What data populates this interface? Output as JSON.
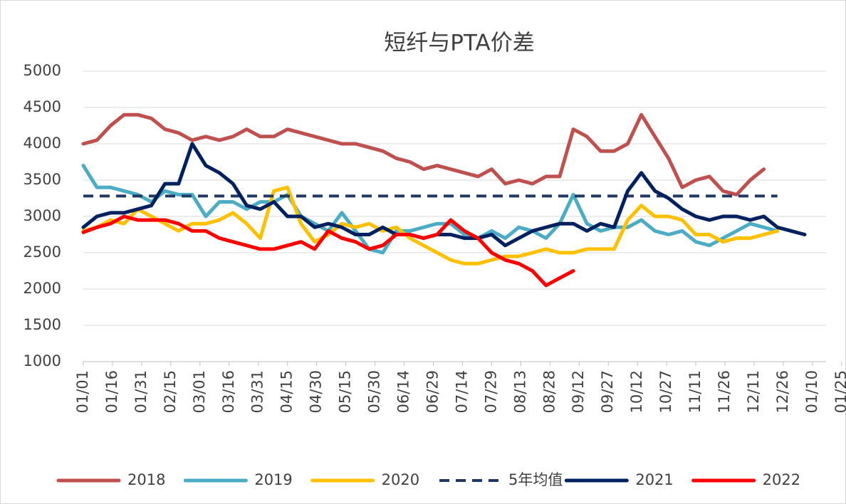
{
  "chart_data": {
    "type": "line",
    "title": "短纤与PTA价差",
    "x": [
      0,
      7,
      14,
      21,
      28,
      35,
      42,
      49,
      56,
      63,
      70,
      77,
      84,
      91,
      98,
      105,
      112,
      119,
      126,
      133,
      140,
      147,
      154,
      161,
      168,
      175,
      182,
      189,
      196,
      203,
      210,
      217,
      224,
      231,
      238,
      245,
      252,
      259,
      266,
      273,
      280,
      287,
      294,
      301,
      308,
      315,
      322,
      329,
      336,
      343,
      350,
      357,
      364,
      371
    ],
    "xlim": [
      0,
      382
    ],
    "xticks": [
      {
        "value": 0,
        "label": "01/01"
      },
      {
        "value": 15,
        "label": "01/16"
      },
      {
        "value": 30,
        "label": "01/31"
      },
      {
        "value": 45,
        "label": "02/15"
      },
      {
        "value": 60,
        "label": "03/01"
      },
      {
        "value": 75,
        "label": "03/16"
      },
      {
        "value": 90,
        "label": "03/31"
      },
      {
        "value": 105,
        "label": "04/15"
      },
      {
        "value": 120,
        "label": "04/30"
      },
      {
        "value": 135,
        "label": "05/15"
      },
      {
        "value": 150,
        "label": "05/30"
      },
      {
        "value": 165,
        "label": "06/14"
      },
      {
        "value": 180,
        "label": "06/29"
      },
      {
        "value": 195,
        "label": "07/14"
      },
      {
        "value": 210,
        "label": "07/29"
      },
      {
        "value": 225,
        "label": "08/13"
      },
      {
        "value": 240,
        "label": "08/28"
      },
      {
        "value": 255,
        "label": "09/12"
      },
      {
        "value": 270,
        "label": "09/27"
      },
      {
        "value": 285,
        "label": "10/12"
      },
      {
        "value": 300,
        "label": "10/27"
      },
      {
        "value": 315,
        "label": "11/11"
      },
      {
        "value": 330,
        "label": "11/26"
      },
      {
        "value": 345,
        "label": "12/11"
      },
      {
        "value": 360,
        "label": "12/26"
      },
      {
        "value": 375,
        "label": "01/10"
      },
      {
        "value": 390,
        "label": "01/25"
      }
    ],
    "ylim": [
      1000,
      5000
    ],
    "yticks": [
      1000,
      1500,
      2000,
      2500,
      3000,
      3500,
      4000,
      4500,
      5000
    ],
    "grid": true,
    "legend": "bottom",
    "series": [
      {
        "name": "2018",
        "color": "#c0504d",
        "values": [
          4000,
          4050,
          4250,
          4400,
          4400,
          4350,
          4200,
          4150,
          4050,
          4100,
          4050,
          4100,
          4200,
          4100,
          4100,
          4200,
          4150,
          4100,
          4050,
          4000,
          4000,
          3950,
          3900,
          3800,
          3750,
          3650,
          3700,
          3650,
          3600,
          3550,
          3650,
          3450,
          3500,
          3450,
          3550,
          3550,
          4200,
          4100,
          3900,
          3900,
          4000,
          4400,
          4100,
          3800,
          3400,
          3500,
          3550,
          3350,
          3300,
          3500,
          3650,
          null,
          null,
          null
        ]
      },
      {
        "name": "2019",
        "color": "#4bacc6",
        "values": [
          3700,
          3400,
          3400,
          3350,
          3300,
          3200,
          3350,
          3300,
          3300,
          3000,
          3200,
          3200,
          3100,
          3200,
          3200,
          3300,
          3000,
          2900,
          2800,
          3050,
          2800,
          2550,
          2500,
          2800,
          2800,
          2850,
          2900,
          2900,
          2750,
          2700,
          2800,
          2700,
          2850,
          2800,
          2700,
          2900,
          3300,
          2900,
          2800,
          2850,
          2850,
          2950,
          2800,
          2750,
          2800,
          2650,
          2600,
          2700,
          2800,
          2900,
          2850,
          2800,
          null,
          null
        ]
      },
      {
        "name": "2020",
        "color": "#ffc000",
        "values": [
          2800,
          2850,
          2950,
          2900,
          3100,
          3000,
          2900,
          2800,
          2900,
          2900,
          2950,
          3050,
          2900,
          2700,
          3350,
          3400,
          2900,
          2650,
          2750,
          2900,
          2850,
          2900,
          2800,
          2850,
          2700,
          2600,
          2500,
          2400,
          2350,
          2350,
          2400,
          2450,
          2450,
          2500,
          2550,
          2500,
          2500,
          2550,
          2550,
          2550,
          2950,
          3150,
          3000,
          3000,
          2950,
          2750,
          2750,
          2650,
          2700,
          2700,
          2750,
          2800,
          null,
          null
        ]
      },
      {
        "name": "5年均值",
        "color": "#1f3864",
        "dash": true,
        "values": [
          3280,
          3280,
          3280,
          3280,
          3280,
          3280,
          3280,
          3280,
          3280,
          3280,
          3280,
          3280,
          3280,
          3280,
          3280,
          3280,
          3280,
          3280,
          3280,
          3280,
          3280,
          3280,
          3280,
          3280,
          3280,
          3280,
          3280,
          3280,
          3280,
          3280,
          3280,
          3280,
          3280,
          3280,
          3280,
          3280,
          3280,
          3280,
          3280,
          3280,
          3280,
          3280,
          3280,
          3280,
          3280,
          3280,
          3280,
          3280,
          3280,
          3280,
          3280,
          3280,
          null,
          null
        ]
      },
      {
        "name": "2021",
        "color": "#002060",
        "values": [
          2850,
          3000,
          3050,
          3050,
          3100,
          3150,
          3450,
          3450,
          4000,
          3700,
          3600,
          3450,
          3150,
          3100,
          3200,
          3000,
          3000,
          2850,
          2900,
          2850,
          2750,
          2750,
          2850,
          2750,
          2750,
          2700,
          2750,
          2750,
          2700,
          2700,
          2750,
          2600,
          2700,
          2800,
          2850,
          2900,
          2900,
          2800,
          2900,
          2850,
          3350,
          3600,
          3350,
          3250,
          3100,
          3000,
          2950,
          3000,
          3000,
          2950,
          3000,
          2850,
          2800,
          2750
        ]
      },
      {
        "name": "2022",
        "color": "#ff0000",
        "values": [
          2780,
          2850,
          2900,
          3000,
          2950,
          2950,
          2950,
          2900,
          2800,
          2800,
          2700,
          2650,
          2600,
          2550,
          2550,
          2600,
          2650,
          2550,
          2800,
          2700,
          2650,
          2550,
          2600,
          2750,
          2750,
          2700,
          2750,
          2950,
          2800,
          2700,
          2500,
          2400,
          2350,
          2250,
          2050,
          2150,
          2250,
          null,
          null,
          null,
          null,
          null,
          null,
          null,
          null,
          null,
          null,
          null,
          null,
          null,
          null,
          null,
          null,
          null
        ]
      }
    ]
  }
}
